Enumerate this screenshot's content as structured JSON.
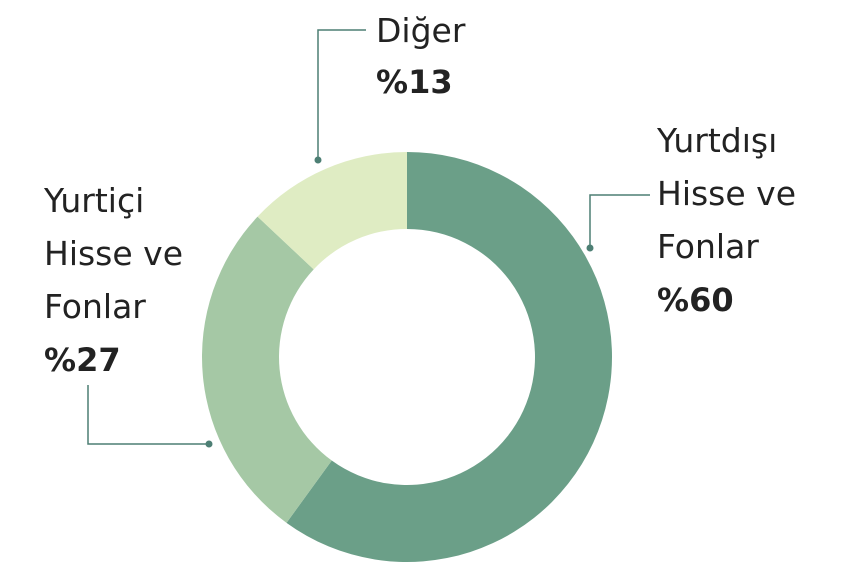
{
  "chart_data": {
    "type": "donut",
    "categories": [
      "Yurtdışı Hisse ve Fonlar",
      "Yurtiçi Hisse ve Fonlar",
      "Diğer"
    ],
    "values": [
      60,
      27,
      13
    ],
    "value_labels": [
      "%60",
      "%27",
      "%13"
    ],
    "colors": [
      "#6b9f88",
      "#a5c8a5",
      "#dfecc3"
    ]
  }
}
